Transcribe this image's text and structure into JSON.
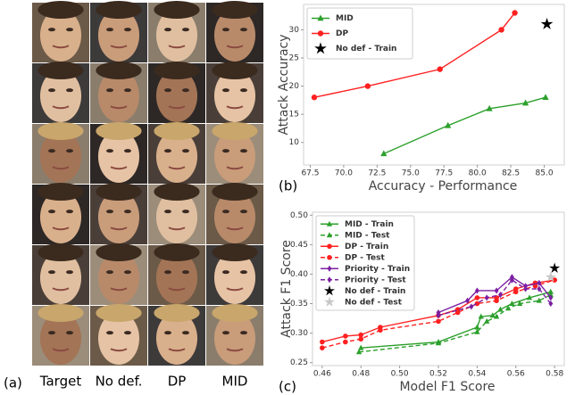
{
  "image_grid": {
    "label": "(a)",
    "columns": [
      "Target",
      "No def.",
      "DP",
      "MID"
    ]
  },
  "chart_data": [
    {
      "type": "line",
      "panel_label": "(b)",
      "x_label": "Accuracy - Performance",
      "y_label": "Attack Accuracy",
      "xlim": [
        67,
        86.5
      ],
      "ylim": [
        6,
        34.5
      ],
      "xticks": [
        67.5,
        {
          "value": 70,
          "label": "70.0"
        },
        72.5,
        {
          "value": 75,
          "label": "75.0"
        },
        77.5,
        {
          "value": 80,
          "label": "80.0"
        },
        82.5,
        {
          "value": 85,
          "label": "85.0"
        }
      ],
      "yticks": [
        10,
        15,
        20,
        25,
        30
      ],
      "grid": false,
      "legend": "upper left",
      "series": [
        {
          "name": "MID",
          "color": "#2ca02c",
          "marker": "triangle",
          "line_style": "solid",
          "x": [
            73,
            77.8,
            80.9,
            83.6,
            85.1
          ],
          "values": [
            8,
            13,
            16,
            17,
            18
          ]
        },
        {
          "name": "DP",
          "color": "#ff2020",
          "marker": "circle",
          "line_style": "solid",
          "x": [
            67.8,
            71.8,
            77.2,
            81.8,
            82.8
          ],
          "values": [
            18,
            20,
            23,
            30,
            33
          ]
        },
        {
          "name": "No def - Train",
          "color": "#000000",
          "marker": "star",
          "line_style": "none",
          "x": [
            85.2
          ],
          "values": [
            31
          ]
        }
      ]
    },
    {
      "type": "line",
      "panel_label": "(c)",
      "x_label": "Model F1 Score",
      "y_label": "Attack F1 Score",
      "xlim": [
        0.455,
        0.585
      ],
      "ylim": [
        0.245,
        0.505
      ],
      "xticks": [
        0.46,
        0.48,
        {
          "value": 0.5,
          "label": "0.50"
        },
        0.52,
        0.54,
        0.56,
        0.58
      ],
      "yticks": [
        0.25,
        {
          "value": 0.3,
          "label": "0.30"
        },
        0.35,
        {
          "value": 0.4,
          "label": "0.40"
        },
        0.45,
        {
          "value": 0.5,
          "label": "0.50"
        }
      ],
      "grid": false,
      "legend": "upper left",
      "series": [
        {
          "name": "MID - Train",
          "color": "#2ca02c",
          "marker": "triangle",
          "line_style": "solid",
          "x": [
            0.48,
            0.52,
            0.54,
            0.542,
            0.548,
            0.552,
            0.558,
            0.567,
            0.578
          ],
          "values": [
            0.275,
            0.285,
            0.31,
            0.328,
            0.33,
            0.34,
            0.35,
            0.36,
            0.37
          ]
        },
        {
          "name": "MID - Test",
          "color": "#2ca02c",
          "marker": "triangle",
          "line_style": "dashed",
          "x": [
            0.479,
            0.52,
            0.54,
            0.545,
            0.55,
            0.556,
            0.562,
            0.572,
            0.578
          ],
          "values": [
            0.268,
            0.283,
            0.302,
            0.32,
            0.328,
            0.342,
            0.35,
            0.355,
            0.365
          ]
        },
        {
          "name": "DP - Train",
          "color": "#ff2020",
          "marker": "circle",
          "line_style": "solid",
          "x": [
            0.46,
            0.472,
            0.48,
            0.49,
            0.52,
            0.53,
            0.54,
            0.55,
            0.56,
            0.57,
            0.58
          ],
          "values": [
            0.285,
            0.295,
            0.297,
            0.31,
            0.33,
            0.34,
            0.36,
            0.36,
            0.375,
            0.385,
            0.39
          ]
        },
        {
          "name": "DP - Test",
          "color": "#ff2020",
          "marker": "circle",
          "line_style": "dashed",
          "x": [
            0.46,
            0.472,
            0.48,
            0.49,
            0.52,
            0.53,
            0.54,
            0.55,
            0.56,
            0.57,
            0.58
          ],
          "values": [
            0.275,
            0.285,
            0.29,
            0.305,
            0.32,
            0.335,
            0.35,
            0.355,
            0.37,
            0.38,
            0.39
          ]
        },
        {
          "name": "Priority - Train",
          "color": "#7b1fa2",
          "marker": "diamond",
          "line_style": "solid",
          "x": [
            0.52,
            0.535,
            0.54,
            0.55,
            0.558,
            0.565,
            0.572,
            0.578
          ],
          "values": [
            0.335,
            0.355,
            0.372,
            0.372,
            0.395,
            0.38,
            0.385,
            0.36
          ]
        },
        {
          "name": "Priority - Test",
          "color": "#7b1fa2",
          "marker": "diamond",
          "line_style": "dashed",
          "x": [
            0.52,
            0.537,
            0.545,
            0.552,
            0.558,
            0.565,
            0.572,
            0.578
          ],
          "values": [
            0.33,
            0.345,
            0.36,
            0.365,
            0.39,
            0.375,
            0.375,
            0.35
          ]
        },
        {
          "name": "No def - Train",
          "color": "#000000",
          "marker": "star",
          "line_style": "none",
          "x": [
            0.58
          ],
          "values": [
            0.41
          ]
        },
        {
          "name": "No def - Test",
          "color": "#c8c8c8",
          "marker": "star",
          "line_style": "none",
          "x": [
            0.578
          ],
          "values": [
            0.395
          ]
        }
      ]
    }
  ]
}
